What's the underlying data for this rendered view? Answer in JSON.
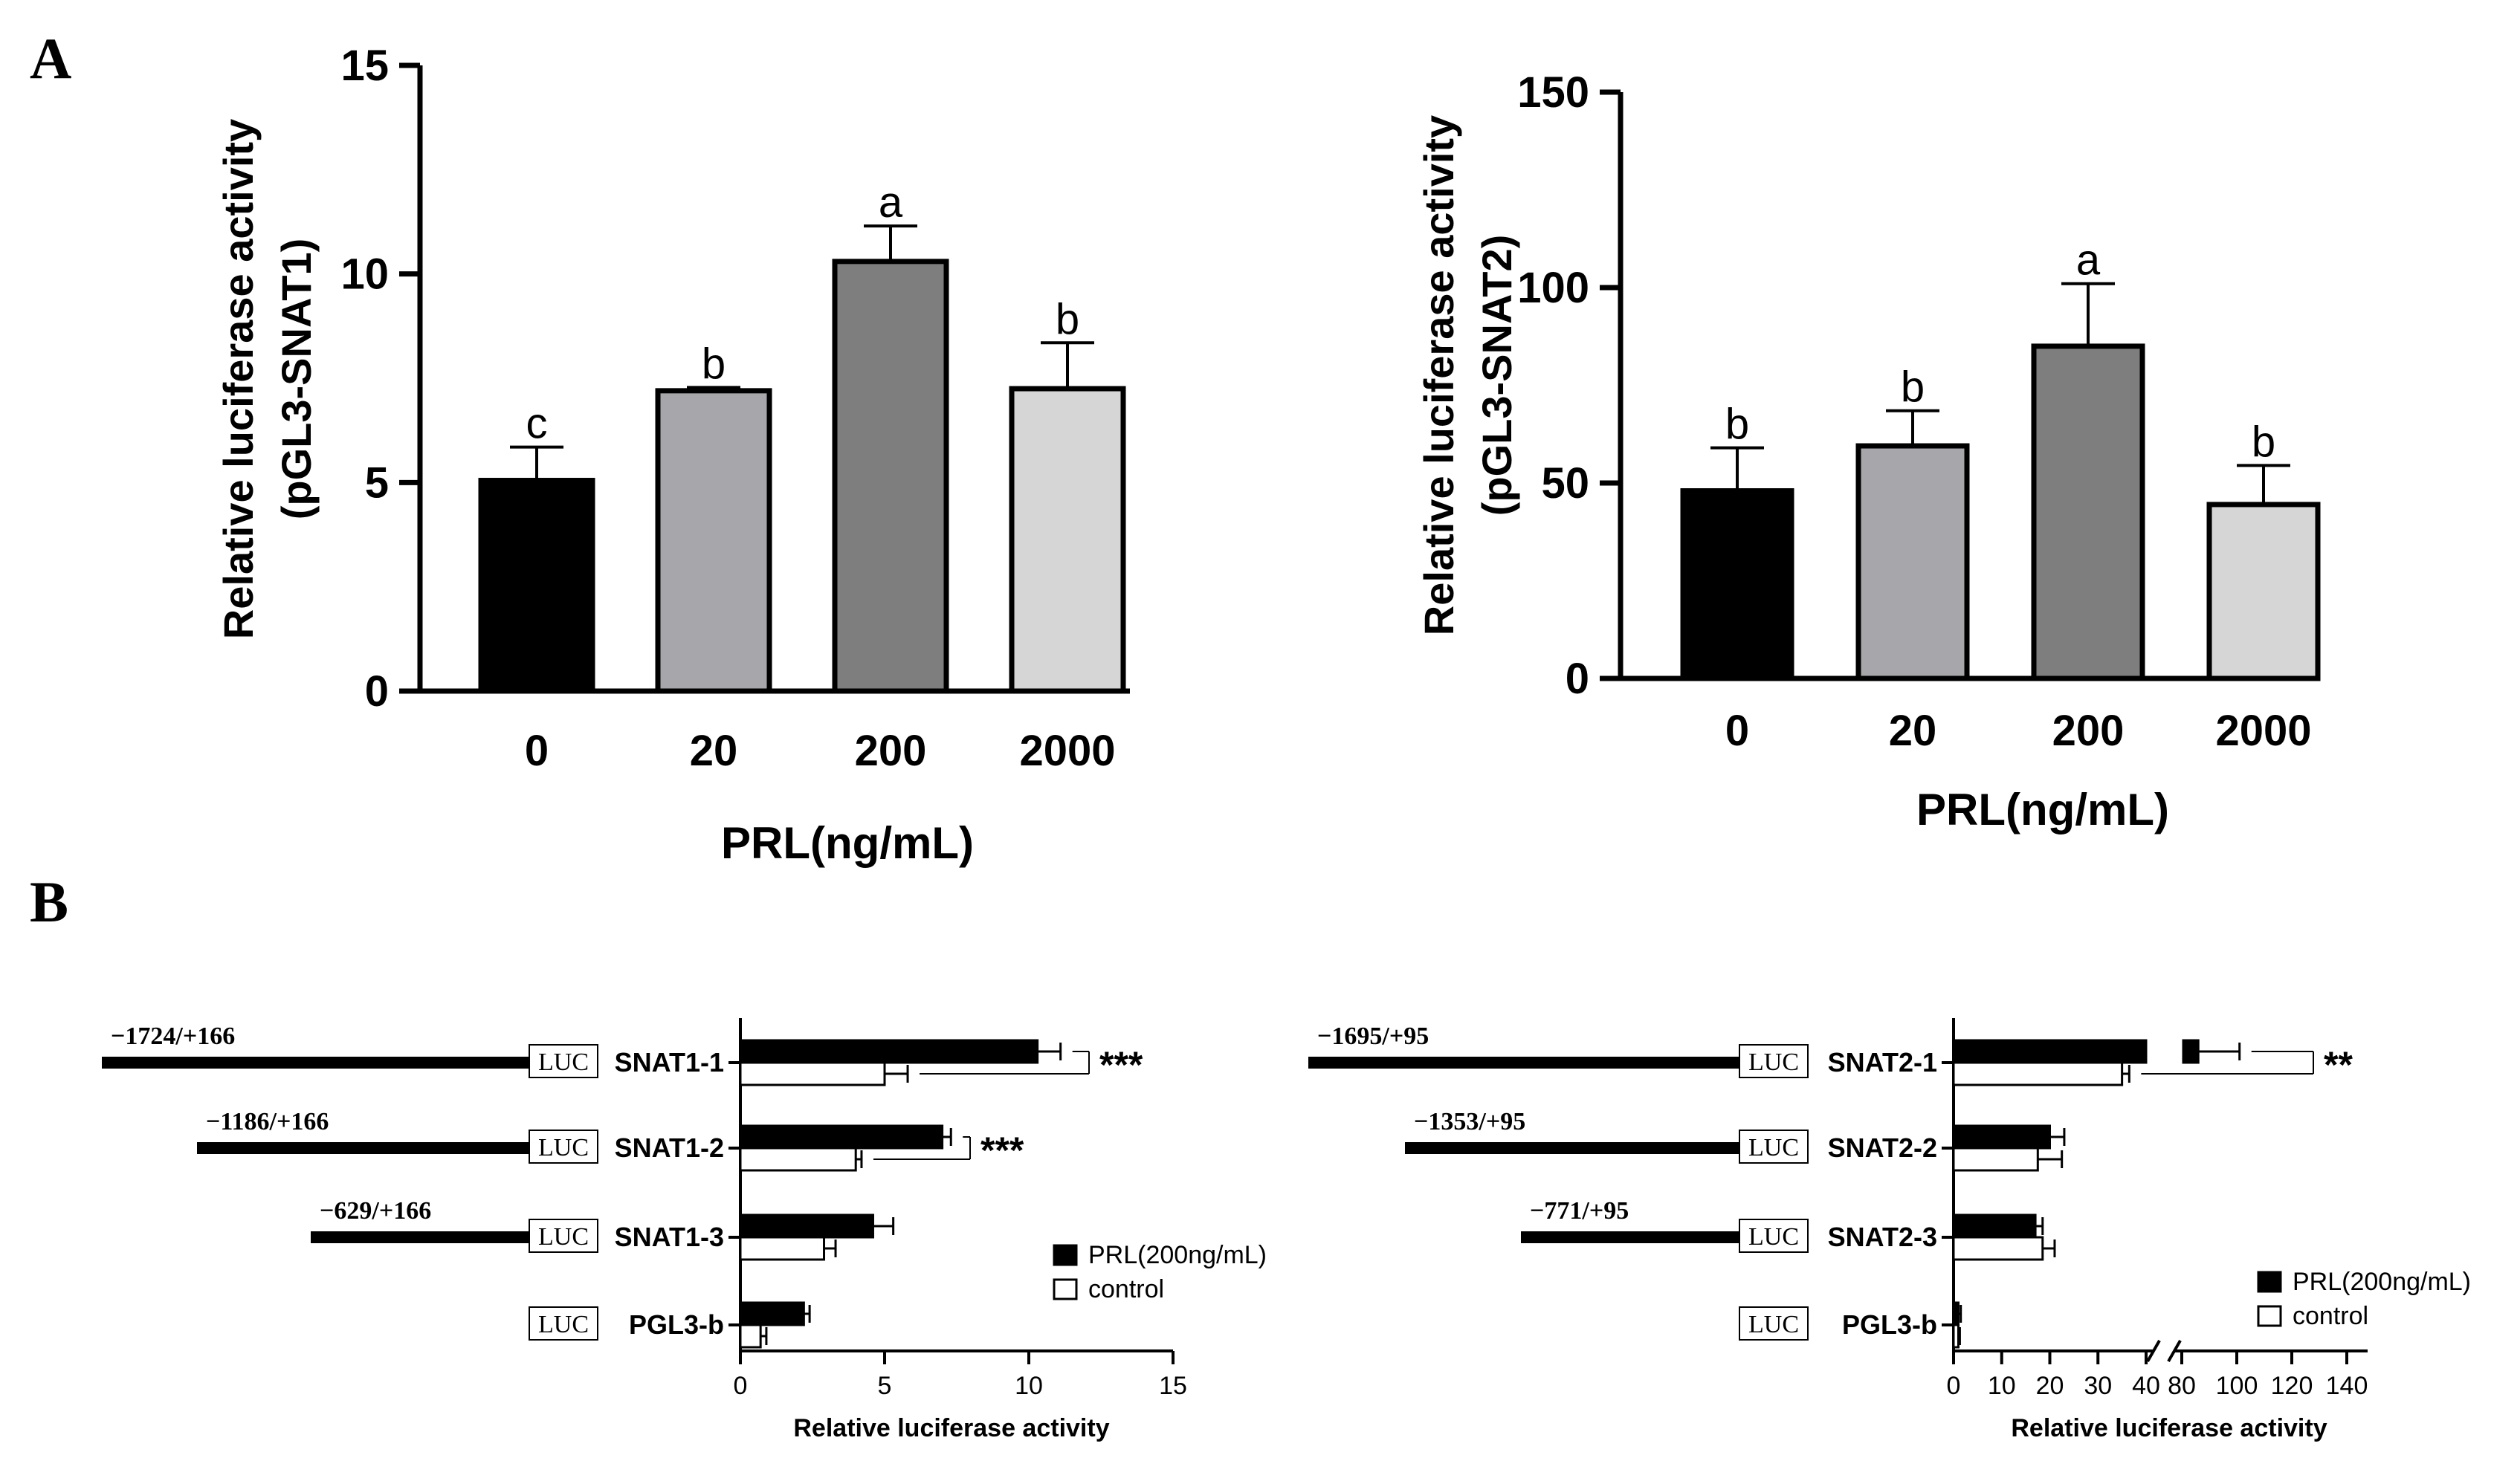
{
  "panel_labels": {
    "a": "A",
    "b": "B"
  },
  "legend": {
    "treated": "PRL(200ng/mL)",
    "control": "control"
  },
  "luc_label": "LUC",
  "chart_data": [
    {
      "id": "A1",
      "type": "bar",
      "title": "",
      "categories": [
        "0",
        "20",
        "200",
        "2000"
      ],
      "values": [
        5.05,
        7.2,
        10.3,
        7.25
      ],
      "errors": [
        0.8,
        0.08,
        0.85,
        1.1
      ],
      "letters": [
        "c",
        "b",
        "a",
        "b"
      ],
      "colors": [
        "#000000",
        "#a7a7ab",
        "#7e7e7e",
        "#d6d6d6"
      ],
      "ylabel_line1": "Relative luciferase activity",
      "ylabel_line2": "(pGL3-SNAT1)",
      "xlabel": "PRL(ng/mL)",
      "ylim": [
        0,
        15
      ],
      "yticks": [
        0,
        5,
        10,
        15
      ]
    },
    {
      "id": "A2",
      "type": "bar",
      "title": "",
      "categories": [
        "0",
        "20",
        "200",
        "2000"
      ],
      "values": [
        48,
        59.5,
        85,
        44.5
      ],
      "errors": [
        11,
        9,
        16,
        10
      ],
      "letters": [
        "b",
        "b",
        "a",
        "b"
      ],
      "colors": [
        "#000000",
        "#a7a7ab",
        "#7e7e7e",
        "#d6d6d6"
      ],
      "ylabel_line1": "Relative luciferase activity",
      "ylabel_line2": "(pGL3-SNAT2)",
      "xlabel": "PRL(ng/mL)",
      "ylim": [
        0,
        150
      ],
      "yticks": [
        0,
        50,
        100,
        150
      ]
    },
    {
      "id": "B1",
      "type": "bar",
      "orientation": "horizontal",
      "constructs": [
        "SNAT1-1",
        "SNAT1-2",
        "SNAT1-3",
        "PGL3-b"
      ],
      "positions": [
        "−1724/+166",
        "−1186/+166",
        "−629/+166",
        ""
      ],
      "series": [
        {
          "name": "PRL(200ng/mL)",
          "values": [
            10.3,
            7.0,
            4.6,
            2.2
          ],
          "errors": [
            0.8,
            0.3,
            0.7,
            0.2
          ]
        },
        {
          "name": "control",
          "values": [
            5.0,
            4.0,
            2.9,
            0.7
          ],
          "errors": [
            0.8,
            0.2,
            0.4,
            0.2
          ]
        }
      ],
      "significance": [
        "***",
        "***",
        "",
        ""
      ],
      "xlabel": "Relative luciferase activity",
      "xlim": [
        0,
        15
      ],
      "xticks": [
        0,
        5,
        10,
        15
      ]
    },
    {
      "id": "B2",
      "type": "bar",
      "orientation": "horizontal",
      "broken_axis": true,
      "constructs": [
        "SNAT2-1",
        "SNAT2-2",
        "SNAT2-3",
        "PGL3-b"
      ],
      "positions": [
        "−1695/+95",
        "−1353/+95",
        "−771/+95",
        ""
      ],
      "series": [
        {
          "name": "PRL(200ng/mL)",
          "values": [
            86,
            20,
            17,
            1
          ],
          "errors": [
            15,
            3,
            1.5,
            0.5
          ]
        },
        {
          "name": "control",
          "values": [
            35,
            17.5,
            18.5,
            1
          ],
          "errors": [
            1.5,
            5,
            2.5,
            0.3
          ]
        }
      ],
      "significance": [
        "**",
        "",
        "",
        ""
      ],
      "xlabel": "Relative luciferase activity",
      "xlim_lower": [
        0,
        40
      ],
      "xlim_upper": [
        80,
        140
      ],
      "xticks": [
        "0",
        "10",
        "20",
        "30",
        "40",
        "80",
        "100",
        "120",
        "140"
      ]
    }
  ]
}
